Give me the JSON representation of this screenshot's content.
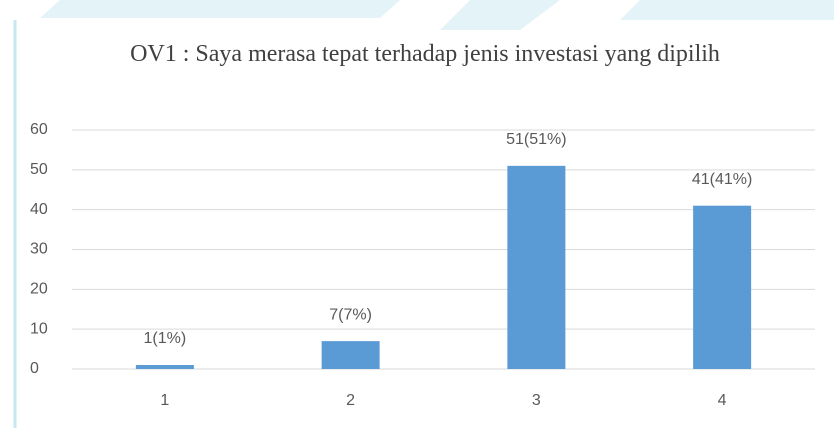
{
  "chart_data": {
    "type": "bar",
    "title": "OV1 : Saya merasa tepat terhadap jenis investasi yang dipilih",
    "categories": [
      "1",
      "2",
      "3",
      "4"
    ],
    "values": [
      1,
      7,
      51,
      41
    ],
    "value_labels": [
      "1(1%)",
      "7(7%)",
      "51(51%)",
      "41(41%)"
    ],
    "color": "#5b9bd5",
    "ylim": [
      0,
      60
    ],
    "yticks": [
      0,
      10,
      20,
      30,
      40,
      50,
      60
    ],
    "grid": true
  }
}
